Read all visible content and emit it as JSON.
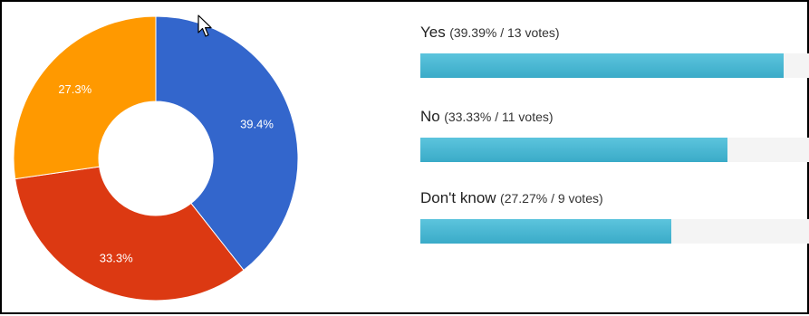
{
  "chart_data": {
    "type": "pie",
    "categories": [
      "Yes",
      "No",
      "Don't know"
    ],
    "values": [
      39.4,
      33.3,
      27.3
    ],
    "slice_labels": [
      "39.4%",
      "33.3%",
      "27.3%"
    ],
    "colors": [
      "#3366cc",
      "#dc3912",
      "#ff9900"
    ],
    "hole": "donut"
  },
  "results": [
    {
      "answer": "Yes",
      "stats": "(39.39% / 13 votes)",
      "percent": 39.39,
      "votes": 13
    },
    {
      "answer": "No",
      "stats": "(33.33% / 11 votes)",
      "percent": 33.33,
      "votes": 11
    },
    {
      "answer": "Don't know",
      "stats": "(27.27% / 9 votes)",
      "percent": 27.27,
      "votes": 9
    }
  ],
  "bar_color": "#3aabc8",
  "icons": {
    "cursor": "mouse-pointer-icon"
  }
}
